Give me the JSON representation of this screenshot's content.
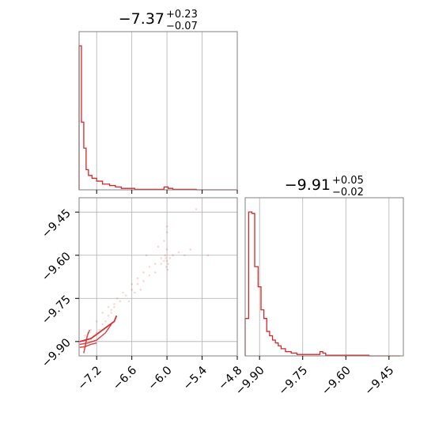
{
  "colors": {
    "series": "#d62728",
    "grid": "#b0b0b0",
    "frame": "#808080"
  },
  "chart_data": [
    {
      "type": "step-histogram",
      "panel": "top-left",
      "title": {
        "median": "−7.37",
        "plus": "+0.23",
        "minus": "−0.07"
      },
      "xlim": [
        -7.5,
        -4.8
      ],
      "xticks": [
        -7.2,
        -6.6,
        -6.0,
        -5.4,
        -4.8
      ],
      "bins": [
        {
          "x0": -7.5,
          "x1": -7.46,
          "h": 1.0
        },
        {
          "x0": -7.46,
          "x1": -7.42,
          "h": 0.47
        },
        {
          "x0": -7.42,
          "x1": -7.38,
          "h": 0.29
        },
        {
          "x0": -7.38,
          "x1": -7.34,
          "h": 0.14
        },
        {
          "x0": -7.34,
          "x1": -7.28,
          "h": 0.1
        },
        {
          "x0": -7.28,
          "x1": -7.2,
          "h": 0.08
        },
        {
          "x0": -7.2,
          "x1": -7.1,
          "h": 0.06
        },
        {
          "x0": -7.1,
          "x1": -6.98,
          "h": 0.04
        },
        {
          "x0": -6.98,
          "x1": -6.88,
          "h": 0.03
        },
        {
          "x0": -6.88,
          "x1": -6.78,
          "h": 0.02
        },
        {
          "x0": -6.78,
          "x1": -6.55,
          "h": 0.01
        },
        {
          "x0": -6.55,
          "x1": -6.05,
          "h": 0.003
        },
        {
          "x0": -6.05,
          "x1": -5.98,
          "h": 0.02
        },
        {
          "x0": -5.98,
          "x1": -5.9,
          "h": 0.01
        },
        {
          "x0": -5.9,
          "x1": -5.5,
          "h": 0.003
        },
        {
          "x0": -5.5,
          "x1": -4.82,
          "h": 0.0
        }
      ]
    },
    {
      "type": "scatter-contour",
      "panel": "bottom-left",
      "xlim": [
        -7.5,
        -4.8
      ],
      "ylim": [
        -9.95,
        -9.4
      ],
      "xticks": [
        -7.2,
        -6.6,
        -6.0,
        -5.4,
        -4.8
      ],
      "yticks": [
        -9.45,
        -9.6,
        -9.75,
        -9.9
      ],
      "points": [
        [
          -6.0,
          -9.62
        ],
        [
          -6.02,
          -9.61
        ],
        [
          -5.98,
          -9.63
        ],
        [
          -6.01,
          -9.64
        ],
        [
          -6.03,
          -9.6
        ],
        [
          -5.99,
          -9.65
        ],
        [
          -6.0,
          -9.58
        ],
        [
          -6.05,
          -9.62
        ],
        [
          -5.95,
          -9.61
        ],
        [
          -5.9,
          -9.6
        ],
        [
          -5.8,
          -9.59
        ],
        [
          -5.7,
          -9.6
        ],
        [
          -5.6,
          -9.58
        ],
        [
          -5.3,
          -9.6
        ],
        [
          -6.1,
          -9.63
        ],
        [
          -6.2,
          -9.66
        ],
        [
          -6.3,
          -9.67
        ],
        [
          -6.4,
          -9.69
        ],
        [
          -6.5,
          -9.7
        ],
        [
          -6.6,
          -9.72
        ],
        [
          -6.7,
          -9.74
        ],
        [
          -6.8,
          -9.76
        ],
        [
          -6.9,
          -9.78
        ],
        [
          -6.95,
          -9.8
        ],
        [
          -7.0,
          -9.81
        ],
        [
          -7.05,
          -9.83
        ],
        [
          -7.1,
          -9.84
        ],
        [
          -7.15,
          -9.86
        ],
        [
          -7.2,
          -9.87
        ],
        [
          -7.25,
          -9.88
        ],
        [
          -7.3,
          -9.89
        ],
        [
          -6.5,
          -9.68
        ],
        [
          -6.4,
          -9.66
        ],
        [
          -6.3,
          -9.64
        ],
        [
          -6.2,
          -9.63
        ],
        [
          -6.1,
          -9.61
        ],
        [
          -6.05,
          -9.55
        ],
        [
          -6.0,
          -9.5
        ],
        [
          -5.5,
          -9.44
        ],
        [
          -6.0,
          -9.52
        ],
        [
          -6.15,
          -9.57
        ],
        [
          -6.35,
          -9.6
        ],
        [
          -6.6,
          -9.7
        ],
        [
          -6.75,
          -9.73
        ],
        [
          -6.85,
          -9.75
        ],
        [
          -7.0,
          -9.78
        ],
        [
          -7.1,
          -9.8
        ],
        [
          -6.9,
          -9.77
        ],
        [
          -6.65,
          -9.76
        ],
        [
          -6.55,
          -9.73
        ],
        [
          -6.45,
          -9.72
        ],
        [
          -6.95,
          -9.79
        ],
        [
          -7.2,
          -9.83
        ],
        [
          -7.3,
          -9.86
        ],
        [
          -7.35,
          -9.87
        ],
        [
          -7.4,
          -9.88
        ]
      ],
      "contours": [
        [
          [
            -7.49,
            -9.9
          ],
          [
            -7.3,
            -9.89
          ],
          [
            -7.1,
            -9.86
          ],
          [
            -6.9,
            -9.83
          ],
          [
            -6.86,
            -9.81
          ]
        ],
        [
          [
            -7.49,
            -9.91
          ],
          [
            -7.35,
            -9.905
          ],
          [
            -7.2,
            -9.895
          ],
          [
            -7.05,
            -9.87
          ],
          [
            -6.95,
            -9.84
          ]
        ],
        [
          [
            -7.49,
            -9.92
          ],
          [
            -7.4,
            -9.918
          ],
          [
            -7.3,
            -9.91
          ],
          [
            -7.2,
            -9.905
          ]
        ],
        [
          [
            -7.42,
            -9.94
          ],
          [
            -7.4,
            -9.92
          ],
          [
            -7.38,
            -9.9
          ],
          [
            -7.36,
            -9.88
          ],
          [
            -7.32,
            -9.86
          ]
        ]
      ]
    },
    {
      "type": "step-histogram",
      "panel": "bottom-right",
      "title": {
        "median": "−9.91",
        "plus": "+0.05",
        "minus": "−0.02"
      },
      "xlim": [
        -9.95,
        -9.4
      ],
      "xticks": [
        -9.9,
        -9.75,
        -9.6,
        -9.45
      ],
      "bins": [
        {
          "x0": -9.95,
          "x1": -9.938,
          "h": 0.26
        },
        {
          "x0": -9.938,
          "x1": -9.927,
          "h": 1.0
        },
        {
          "x0": -9.927,
          "x1": -9.917,
          "h": 0.99
        },
        {
          "x0": -9.917,
          "x1": -9.905,
          "h": 0.62
        },
        {
          "x0": -9.905,
          "x1": -9.895,
          "h": 0.48
        },
        {
          "x0": -9.895,
          "x1": -9.885,
          "h": 0.32
        },
        {
          "x0": -9.885,
          "x1": -9.875,
          "h": 0.26
        },
        {
          "x0": -9.875,
          "x1": -9.865,
          "h": 0.17
        },
        {
          "x0": -9.865,
          "x1": -9.855,
          "h": 0.14
        },
        {
          "x0": -9.855,
          "x1": -9.845,
          "h": 0.11
        },
        {
          "x0": -9.845,
          "x1": -9.835,
          "h": 0.09
        },
        {
          "x0": -9.835,
          "x1": -9.825,
          "h": 0.07
        },
        {
          "x0": -9.825,
          "x1": -9.81,
          "h": 0.05
        },
        {
          "x0": -9.81,
          "x1": -9.79,
          "h": 0.03
        },
        {
          "x0": -9.79,
          "x1": -9.77,
          "h": 0.02
        },
        {
          "x0": -9.77,
          "x1": -9.69,
          "h": 0.01
        },
        {
          "x0": -9.69,
          "x1": -9.68,
          "h": 0.03
        },
        {
          "x0": -9.68,
          "x1": -9.67,
          "h": 0.02
        },
        {
          "x0": -9.67,
          "x1": -9.52,
          "h": 0.005
        },
        {
          "x0": -9.52,
          "x1": -9.41,
          "h": 0.0
        }
      ]
    }
  ]
}
